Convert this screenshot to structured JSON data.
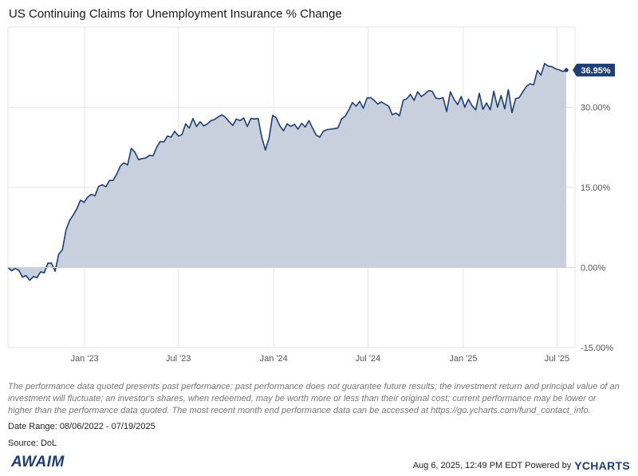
{
  "title": "US Continuing Claims for Unemployment Insurance % Change",
  "disclaimer": "The performance data quoted presents past performance; past performance does not guarantee future results; the investment return and principal value of an investment will fluctuate; an investor's shares, when redeemed, may be worth more or less than their original cost; current performance may be lower or higher than the performance data quoted. The most recent month end performance data can be accessed at https://go.ycharts.com/fund_contact_info.",
  "date_range": "Date Range: 08/06/2022 - 07/19/2025",
  "source": "Source: DoL",
  "logo_text": "AWAIM",
  "footer": {
    "timestamp": "Aug 6, 2025, 12:49 PM EDT Powered by",
    "brand": "YCHARTS"
  },
  "colors": {
    "line": "#1d3f73",
    "fill": "#c6cedb",
    "grid": "#e6e6e6",
    "last_value_badge": "#1d3f73"
  },
  "chart_data": {
    "type": "area",
    "title": "US Continuing Claims for Unemployment Insurance % Change",
    "xlabel": "",
    "ylabel": "",
    "x_range": [
      "2022-08-06",
      "2025-07-19"
    ],
    "ylim": [
      -15,
      45
    ],
    "y_ticks": [
      {
        "value": 30,
        "label": "30.00%"
      },
      {
        "value": 15,
        "label": "15.00%"
      },
      {
        "value": 0,
        "label": "0.00%"
      },
      {
        "value": -15,
        "label": "-15.00%"
      }
    ],
    "x_ticks": [
      {
        "date": "2023-01-01",
        "label": "Jan '23"
      },
      {
        "date": "2023-07-01",
        "label": "Jul '23"
      },
      {
        "date": "2024-01-01",
        "label": "Jan '24"
      },
      {
        "date": "2024-07-01",
        "label": "Jul '24"
      },
      {
        "date": "2025-01-01",
        "label": "Jan '25"
      },
      {
        "date": "2025-07-01",
        "label": "Jul '25"
      }
    ],
    "grid": true,
    "last_value_label": "36.95%",
    "series": [
      {
        "values": [
          {
            "x": "2022-08-06",
            "y": 0.0
          },
          {
            "x": "2022-08-13",
            "y": -0.6
          },
          {
            "x": "2022-08-20",
            "y": -0.2
          },
          {
            "x": "2022-08-27",
            "y": -0.5
          },
          {
            "x": "2022-09-03",
            "y": -1.8
          },
          {
            "x": "2022-09-10",
            "y": -1.5
          },
          {
            "x": "2022-09-17",
            "y": -2.4
          },
          {
            "x": "2022-09-24",
            "y": -1.7
          },
          {
            "x": "2022-10-01",
            "y": -1.9
          },
          {
            "x": "2022-10-08",
            "y": -0.8
          },
          {
            "x": "2022-10-15",
            "y": -1.0
          },
          {
            "x": "2022-10-22",
            "y": 0.8
          },
          {
            "x": "2022-10-29",
            "y": 0.8
          },
          {
            "x": "2022-11-05",
            "y": -0.7
          },
          {
            "x": "2022-11-12",
            "y": 2.5
          },
          {
            "x": "2022-11-19",
            "y": 3.3
          },
          {
            "x": "2022-11-26",
            "y": 7.0
          },
          {
            "x": "2022-12-03",
            "y": 8.8
          },
          {
            "x": "2022-12-10",
            "y": 9.8
          },
          {
            "x": "2022-12-17",
            "y": 11.0
          },
          {
            "x": "2022-12-24",
            "y": 12.6
          },
          {
            "x": "2022-12-31",
            "y": 12.2
          },
          {
            "x": "2023-01-07",
            "y": 13.2
          },
          {
            "x": "2023-01-14",
            "y": 13.7
          },
          {
            "x": "2023-01-21",
            "y": 13.4
          },
          {
            "x": "2023-01-28",
            "y": 15.2
          },
          {
            "x": "2023-02-04",
            "y": 15.5
          },
          {
            "x": "2023-02-11",
            "y": 15.1
          },
          {
            "x": "2023-02-18",
            "y": 16.3
          },
          {
            "x": "2023-02-25",
            "y": 16.3
          },
          {
            "x": "2023-03-04",
            "y": 17.5
          },
          {
            "x": "2023-03-11",
            "y": 19.0
          },
          {
            "x": "2023-03-18",
            "y": 19.6
          },
          {
            "x": "2023-03-25",
            "y": 19.2
          },
          {
            "x": "2023-04-01",
            "y": 22.3
          },
          {
            "x": "2023-04-08",
            "y": 21.6
          },
          {
            "x": "2023-04-15",
            "y": 20.2
          },
          {
            "x": "2023-04-22",
            "y": 20.4
          },
          {
            "x": "2023-04-29",
            "y": 20.5
          },
          {
            "x": "2023-05-06",
            "y": 21.0
          },
          {
            "x": "2023-05-13",
            "y": 20.9
          },
          {
            "x": "2023-05-20",
            "y": 22.5
          },
          {
            "x": "2023-05-27",
            "y": 23.6
          },
          {
            "x": "2023-06-03",
            "y": 23.5
          },
          {
            "x": "2023-06-10",
            "y": 24.6
          },
          {
            "x": "2023-06-17",
            "y": 24.4
          },
          {
            "x": "2023-06-24",
            "y": 25.5
          },
          {
            "x": "2023-07-01",
            "y": 24.6
          },
          {
            "x": "2023-07-08",
            "y": 24.9
          },
          {
            "x": "2023-07-15",
            "y": 26.9
          },
          {
            "x": "2023-07-22",
            "y": 26.1
          },
          {
            "x": "2023-07-29",
            "y": 27.9
          },
          {
            "x": "2023-08-05",
            "y": 26.4
          },
          {
            "x": "2023-08-12",
            "y": 27.3
          },
          {
            "x": "2023-08-19",
            "y": 26.5
          },
          {
            "x": "2023-08-26",
            "y": 26.9
          },
          {
            "x": "2023-09-02",
            "y": 27.5
          },
          {
            "x": "2023-09-09",
            "y": 27.7
          },
          {
            "x": "2023-09-16",
            "y": 28.2
          },
          {
            "x": "2023-09-23",
            "y": 28.6
          },
          {
            "x": "2023-09-30",
            "y": 28.1
          },
          {
            "x": "2023-10-07",
            "y": 27.3
          },
          {
            "x": "2023-10-14",
            "y": 26.6
          },
          {
            "x": "2023-10-21",
            "y": 27.8
          },
          {
            "x": "2023-10-28",
            "y": 27.5
          },
          {
            "x": "2023-11-04",
            "y": 28.0
          },
          {
            "x": "2023-11-11",
            "y": 26.4
          },
          {
            "x": "2023-11-18",
            "y": 27.9
          },
          {
            "x": "2023-11-25",
            "y": 27.8
          },
          {
            "x": "2023-12-02",
            "y": 27.9
          },
          {
            "x": "2023-12-09",
            "y": 24.4
          },
          {
            "x": "2023-12-16",
            "y": 22.0
          },
          {
            "x": "2023-12-23",
            "y": 24.2
          },
          {
            "x": "2023-12-30",
            "y": 28.5
          },
          {
            "x": "2024-01-06",
            "y": 28.0
          },
          {
            "x": "2024-01-13",
            "y": 26.5
          },
          {
            "x": "2024-01-20",
            "y": 25.6
          },
          {
            "x": "2024-01-27",
            "y": 26.9
          },
          {
            "x": "2024-02-03",
            "y": 26.4
          },
          {
            "x": "2024-02-10",
            "y": 26.8
          },
          {
            "x": "2024-02-17",
            "y": 25.9
          },
          {
            "x": "2024-02-24",
            "y": 27.0
          },
          {
            "x": "2024-03-02",
            "y": 26.3
          },
          {
            "x": "2024-03-09",
            "y": 27.5
          },
          {
            "x": "2024-03-16",
            "y": 26.1
          },
          {
            "x": "2024-03-23",
            "y": 24.8
          },
          {
            "x": "2024-03-30",
            "y": 24.4
          },
          {
            "x": "2024-04-06",
            "y": 25.5
          },
          {
            "x": "2024-04-13",
            "y": 25.8
          },
          {
            "x": "2024-04-20",
            "y": 25.9
          },
          {
            "x": "2024-04-27",
            "y": 26.0
          },
          {
            "x": "2024-05-04",
            "y": 26.1
          },
          {
            "x": "2024-05-11",
            "y": 27.8
          },
          {
            "x": "2024-05-18",
            "y": 28.3
          },
          {
            "x": "2024-05-25",
            "y": 29.5
          },
          {
            "x": "2024-06-01",
            "y": 30.9
          },
          {
            "x": "2024-06-08",
            "y": 30.2
          },
          {
            "x": "2024-06-15",
            "y": 31.1
          },
          {
            "x": "2024-06-22",
            "y": 29.8
          },
          {
            "x": "2024-06-29",
            "y": 31.7
          },
          {
            "x": "2024-07-06",
            "y": 31.8
          },
          {
            "x": "2024-07-13",
            "y": 31.3
          },
          {
            "x": "2024-07-20",
            "y": 30.6
          },
          {
            "x": "2024-07-27",
            "y": 31.0
          },
          {
            "x": "2024-08-03",
            "y": 30.6
          },
          {
            "x": "2024-08-10",
            "y": 30.2
          },
          {
            "x": "2024-08-17",
            "y": 28.6
          },
          {
            "x": "2024-08-24",
            "y": 28.9
          },
          {
            "x": "2024-08-31",
            "y": 28.4
          },
          {
            "x": "2024-09-07",
            "y": 31.3
          },
          {
            "x": "2024-09-14",
            "y": 31.6
          },
          {
            "x": "2024-09-21",
            "y": 32.4
          },
          {
            "x": "2024-09-28",
            "y": 31.3
          },
          {
            "x": "2024-10-05",
            "y": 32.9
          },
          {
            "x": "2024-10-12",
            "y": 32.0
          },
          {
            "x": "2024-10-19",
            "y": 32.5
          },
          {
            "x": "2024-10-26",
            "y": 33.1
          },
          {
            "x": "2024-11-02",
            "y": 33.0
          },
          {
            "x": "2024-11-09",
            "y": 31.7
          },
          {
            "x": "2024-11-16",
            "y": 31.6
          },
          {
            "x": "2024-11-23",
            "y": 31.8
          },
          {
            "x": "2024-11-30",
            "y": 29.2
          },
          {
            "x": "2024-12-07",
            "y": 32.9
          },
          {
            "x": "2024-12-14",
            "y": 31.5
          },
          {
            "x": "2024-12-21",
            "y": 30.5
          },
          {
            "x": "2024-12-28",
            "y": 32.0
          },
          {
            "x": "2025-01-04",
            "y": 30.0
          },
          {
            "x": "2025-01-11",
            "y": 31.5
          },
          {
            "x": "2025-01-18",
            "y": 30.3
          },
          {
            "x": "2025-01-25",
            "y": 29.5
          },
          {
            "x": "2025-02-01",
            "y": 32.6
          },
          {
            "x": "2025-02-08",
            "y": 29.6
          },
          {
            "x": "2025-02-15",
            "y": 30.8
          },
          {
            "x": "2025-02-22",
            "y": 29.5
          },
          {
            "x": "2025-03-01",
            "y": 33.0
          },
          {
            "x": "2025-03-08",
            "y": 30.0
          },
          {
            "x": "2025-03-15",
            "y": 32.2
          },
          {
            "x": "2025-03-22",
            "y": 29.7
          },
          {
            "x": "2025-03-29",
            "y": 33.3
          },
          {
            "x": "2025-04-05",
            "y": 29.0
          },
          {
            "x": "2025-04-12",
            "y": 31.6
          },
          {
            "x": "2025-04-19",
            "y": 31.8
          },
          {
            "x": "2025-04-26",
            "y": 32.9
          },
          {
            "x": "2025-05-03",
            "y": 33.9
          },
          {
            "x": "2025-05-10",
            "y": 34.4
          },
          {
            "x": "2025-05-17",
            "y": 34.2
          },
          {
            "x": "2025-05-24",
            "y": 36.9
          },
          {
            "x": "2025-05-31",
            "y": 36.0
          },
          {
            "x": "2025-06-07",
            "y": 38.2
          },
          {
            "x": "2025-06-14",
            "y": 37.7
          },
          {
            "x": "2025-06-21",
            "y": 37.6
          },
          {
            "x": "2025-06-28",
            "y": 37.2
          },
          {
            "x": "2025-07-05",
            "y": 37.0
          },
          {
            "x": "2025-07-12",
            "y": 36.7
          },
          {
            "x": "2025-07-19",
            "y": 36.95
          }
        ]
      }
    ]
  }
}
